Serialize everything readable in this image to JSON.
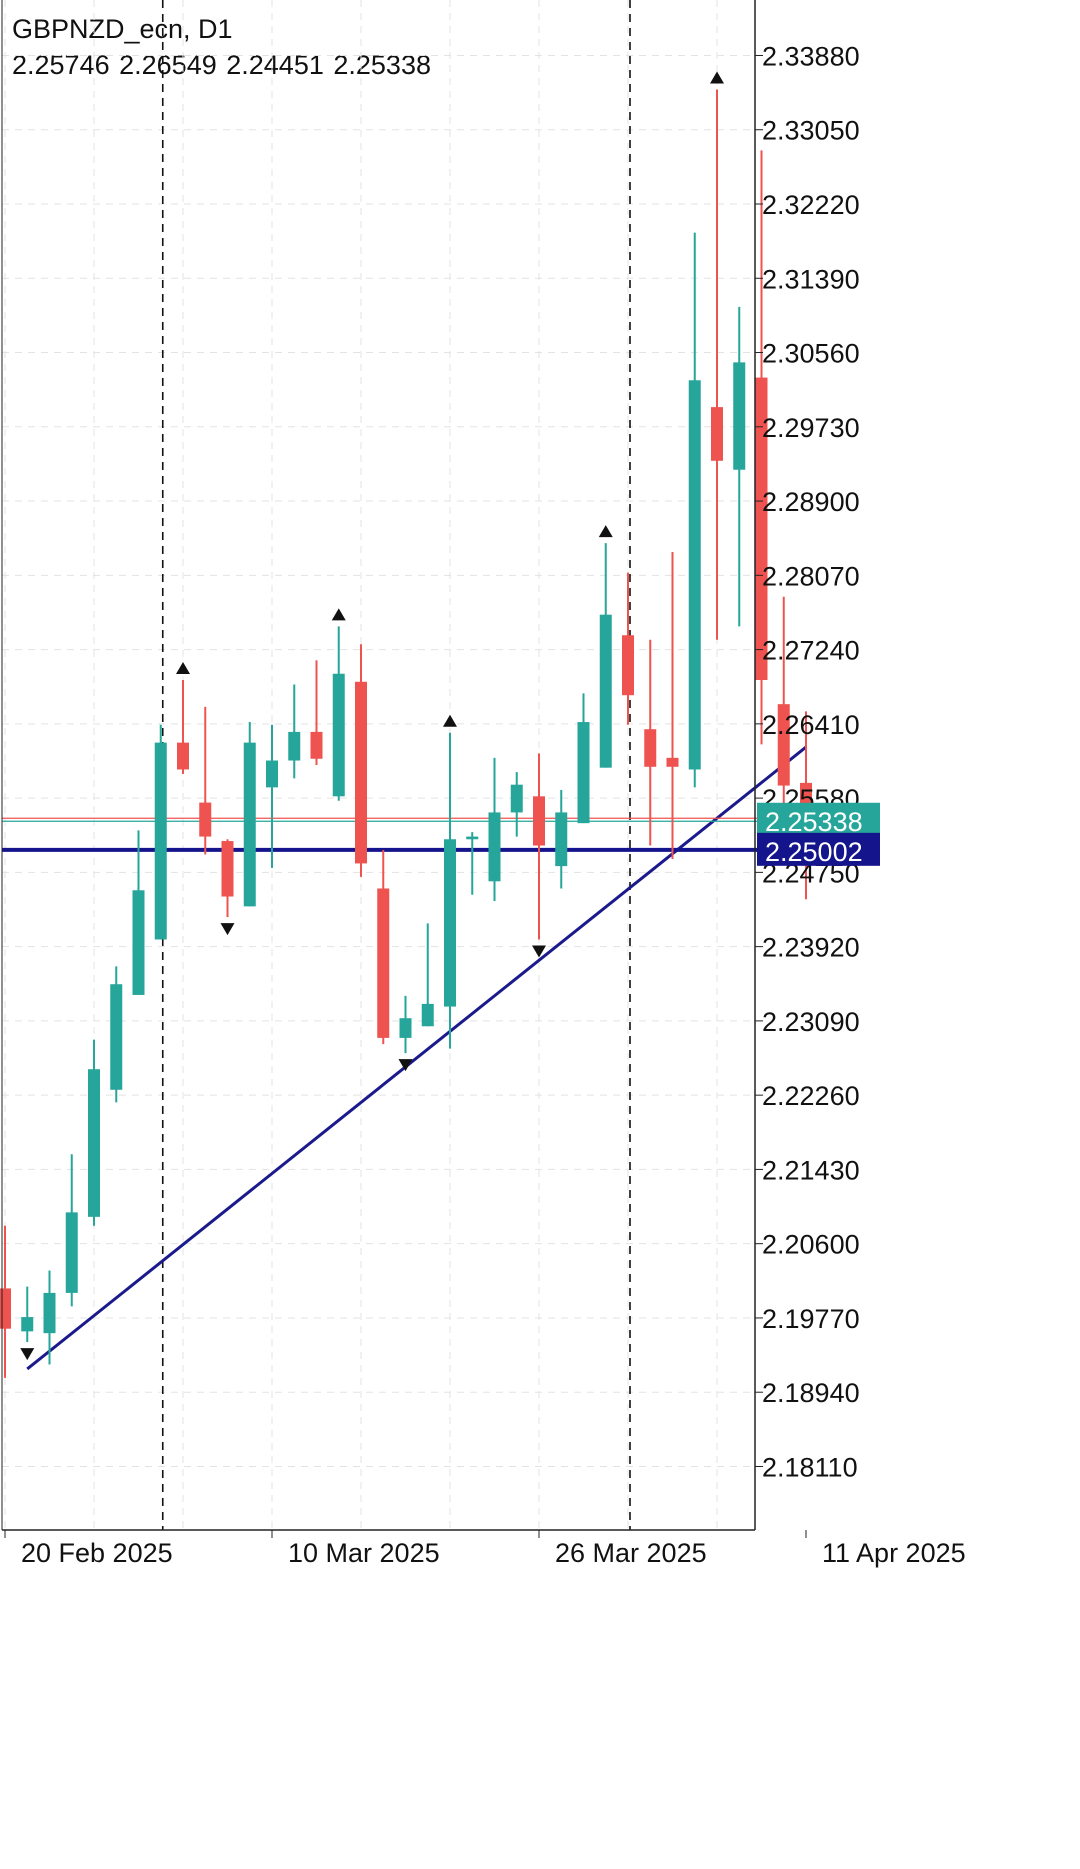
{
  "header": {
    "symbol_timeframe": "GBPNZD_ecn, D1",
    "ohlc": [
      "2.25746",
      "2.26549",
      "2.24451",
      "2.25338"
    ]
  },
  "colors": {
    "bull": "#26a69a",
    "bear": "#ef5350",
    "grid": "#e3e3e3",
    "axis": "#222222",
    "trendline": "#1a1a8c",
    "level_line": "#14148c",
    "bid_label": "#26a69a",
    "level_label": "#14148c",
    "marker": "#111111"
  },
  "chart_data": {
    "type": "candlestick",
    "symbol": "GBPNZD_ecn",
    "timeframe": "D1",
    "ylim": [
      2.174,
      2.345
    ],
    "y_ticks": [
      "2.33880",
      "2.33050",
      "2.32220",
      "2.31390",
      "2.30560",
      "2.29730",
      "2.28900",
      "2.28070",
      "2.27240",
      "2.26410",
      "2.25580",
      "2.24750",
      "2.23920",
      "2.23090",
      "2.22260",
      "2.21430",
      "2.20600",
      "2.19770",
      "2.18940",
      "2.18110"
    ],
    "x_labels": [
      {
        "label": "20 Feb 2025",
        "index": 0
      },
      {
        "label": "10 Mar 2025",
        "index": 12
      },
      {
        "label": "26 Mar 2025",
        "index": 24
      },
      {
        "label": "11 Apr 2025",
        "index": 36
      }
    ],
    "vertical_grid_indices": [
      0,
      4,
      8,
      12,
      16,
      20,
      24,
      28,
      32,
      36,
      40
    ],
    "vertical_dashed_indices": [
      7,
      28
    ],
    "candles": [
      {
        "o": 2.201,
        "h": 2.208,
        "l": 2.191,
        "c": 2.1965
      },
      {
        "o": 2.1962,
        "h": 2.2012,
        "l": 2.195,
        "c": 2.1978
      },
      {
        "o": 2.196,
        "h": 2.203,
        "l": 2.1925,
        "c": 2.2005
      },
      {
        "o": 2.2005,
        "h": 2.216,
        "l": 2.199,
        "c": 2.2095
      },
      {
        "o": 2.209,
        "h": 2.2288,
        "l": 2.208,
        "c": 2.2255
      },
      {
        "o": 2.2232,
        "h": 2.237,
        "l": 2.2218,
        "c": 2.235
      },
      {
        "o": 2.2338,
        "h": 2.2522,
        "l": 2.2338,
        "c": 2.2455
      },
      {
        "o": 2.24,
        "h": 2.264,
        "l": 2.24,
        "c": 2.262
      },
      {
        "o": 2.262,
        "h": 2.269,
        "l": 2.2585,
        "c": 2.259
      },
      {
        "o": 2.2553,
        "h": 2.266,
        "l": 2.2495,
        "c": 2.2515
      },
      {
        "o": 2.251,
        "h": 2.2512,
        "l": 2.2425,
        "c": 2.2448
      },
      {
        "o": 2.2437,
        "h": 2.2643,
        "l": 2.2437,
        "c": 2.262
      },
      {
        "o": 2.257,
        "h": 2.264,
        "l": 2.248,
        "c": 2.26
      },
      {
        "o": 2.26,
        "h": 2.2685,
        "l": 2.258,
        "c": 2.2632
      },
      {
        "o": 2.2632,
        "h": 2.2712,
        "l": 2.2595,
        "c": 2.2602
      },
      {
        "o": 2.256,
        "h": 2.275,
        "l": 2.2555,
        "c": 2.2697
      },
      {
        "o": 2.2688,
        "h": 2.273,
        "l": 2.247,
        "c": 2.2485
      },
      {
        "o": 2.2457,
        "h": 2.25,
        "l": 2.2283,
        "c": 2.229
      },
      {
        "o": 2.229,
        "h": 2.2337,
        "l": 2.2273,
        "c": 2.2312
      },
      {
        "o": 2.2303,
        "h": 2.2418,
        "l": 2.2303,
        "c": 2.2328
      },
      {
        "o": 2.2325,
        "h": 2.2631,
        "l": 2.2278,
        "c": 2.2512
      },
      {
        "o": 2.2512,
        "h": 2.252,
        "l": 2.245,
        "c": 2.2515
      },
      {
        "o": 2.2465,
        "h": 2.2603,
        "l": 2.2443,
        "c": 2.2542
      },
      {
        "o": 2.2542,
        "h": 2.2587,
        "l": 2.2515,
        "c": 2.2573
      },
      {
        "o": 2.256,
        "h": 2.2608,
        "l": 2.24,
        "c": 2.2505
      },
      {
        "o": 2.2482,
        "h": 2.2567,
        "l": 2.2457,
        "c": 2.2542
      },
      {
        "o": 2.253,
        "h": 2.2675,
        "l": 2.253,
        "c": 2.2643
      },
      {
        "o": 2.2592,
        "h": 2.2843,
        "l": 2.2592,
        "c": 2.2763
      },
      {
        "o": 2.274,
        "h": 2.281,
        "l": 2.264,
        "c": 2.2673
      },
      {
        "o": 2.2635,
        "h": 2.2735,
        "l": 2.2505,
        "c": 2.2593
      },
      {
        "o": 2.2603,
        "h": 2.2833,
        "l": 2.249,
        "c": 2.2593
      },
      {
        "o": 2.259,
        "h": 2.319,
        "l": 2.257,
        "c": 2.3025
      },
      {
        "o": 2.2995,
        "h": 2.335,
        "l": 2.2735,
        "c": 2.2935
      },
      {
        "o": 2.2925,
        "h": 2.3107,
        "l": 2.275,
        "c": 2.3045
      },
      {
        "o": 2.3028,
        "h": 2.3282,
        "l": 2.2618,
        "c": 2.269
      },
      {
        "o": 2.2663,
        "h": 2.2783,
        "l": 2.2525,
        "c": 2.2572
      },
      {
        "o": 2.2575,
        "h": 2.2655,
        "l": 2.2445,
        "c": 2.2534
      }
    ],
    "fractals": [
      {
        "index": 1,
        "dir": "down"
      },
      {
        "index": 8,
        "dir": "up"
      },
      {
        "index": 10,
        "dir": "down"
      },
      {
        "index": 15,
        "dir": "up"
      },
      {
        "index": 18,
        "dir": "down"
      },
      {
        "index": 20,
        "dir": "up"
      },
      {
        "index": 24,
        "dir": "down"
      },
      {
        "index": 27,
        "dir": "up"
      },
      {
        "index": 32,
        "dir": "up"
      }
    ],
    "trendline": {
      "from": {
        "index": 1,
        "price": 2.192
      },
      "to": {
        "index": 36,
        "price": 2.2615
      }
    },
    "horizontal_level": {
      "price": 2.25002,
      "label": "2.25002"
    },
    "current_price": {
      "price": 2.25338,
      "label": "2.25338"
    }
  }
}
